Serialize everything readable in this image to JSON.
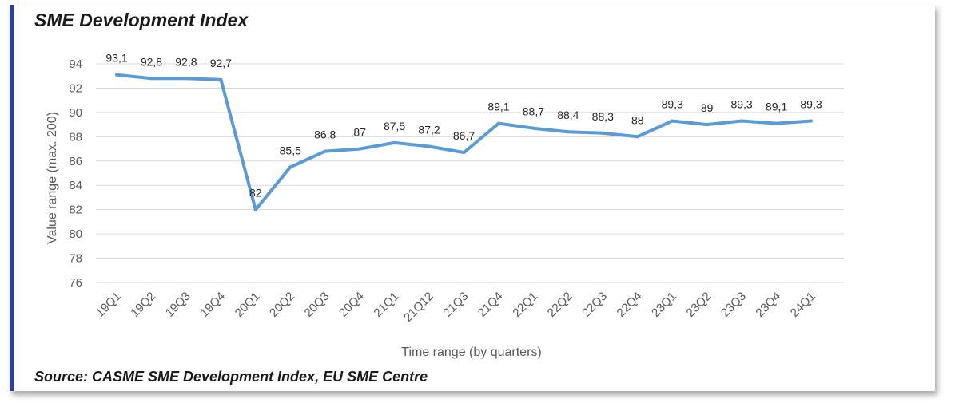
{
  "title": "SME Development Index",
  "source": "Source: CASME SME Development Index, EU SME Centre",
  "chart_data": {
    "type": "line",
    "title": "SME Development Index",
    "xlabel": "Time range (by quarters)",
    "ylabel": "Value range (max. 200)",
    "ylim": [
      76,
      94
    ],
    "yticks": [
      76,
      78,
      80,
      82,
      84,
      86,
      88,
      90,
      92,
      94
    ],
    "grid": true,
    "legend": "none",
    "line_color": "#5b9bd5",
    "categories": [
      "19Q1",
      "19Q2",
      "19Q3",
      "19Q4",
      "20Q1",
      "20Q2",
      "20Q3",
      "20Q4",
      "21Q1",
      "21Q12",
      "21Q3",
      "21Q4",
      "22Q1",
      "22Q2",
      "22Q3",
      "22Q4",
      "23Q1",
      "23Q2",
      "23Q3",
      "23Q4",
      "24Q1"
    ],
    "values": [
      93.1,
      92.8,
      92.8,
      92.7,
      82,
      85.5,
      86.8,
      87,
      87.5,
      87.2,
      86.7,
      89.1,
      88.7,
      88.4,
      88.3,
      88,
      89.3,
      89,
      89.3,
      89.1,
      89.3
    ],
    "data_labels": [
      "93,1",
      "92,8",
      "92,8",
      "92,7",
      "82",
      "85,5",
      "86,8",
      "87",
      "87,5",
      "87,2",
      "86,7",
      "89,1",
      "88,7",
      "88,4",
      "88,3",
      "88",
      "89,3",
      "89",
      "89,3",
      "89,1",
      "89,3"
    ]
  }
}
